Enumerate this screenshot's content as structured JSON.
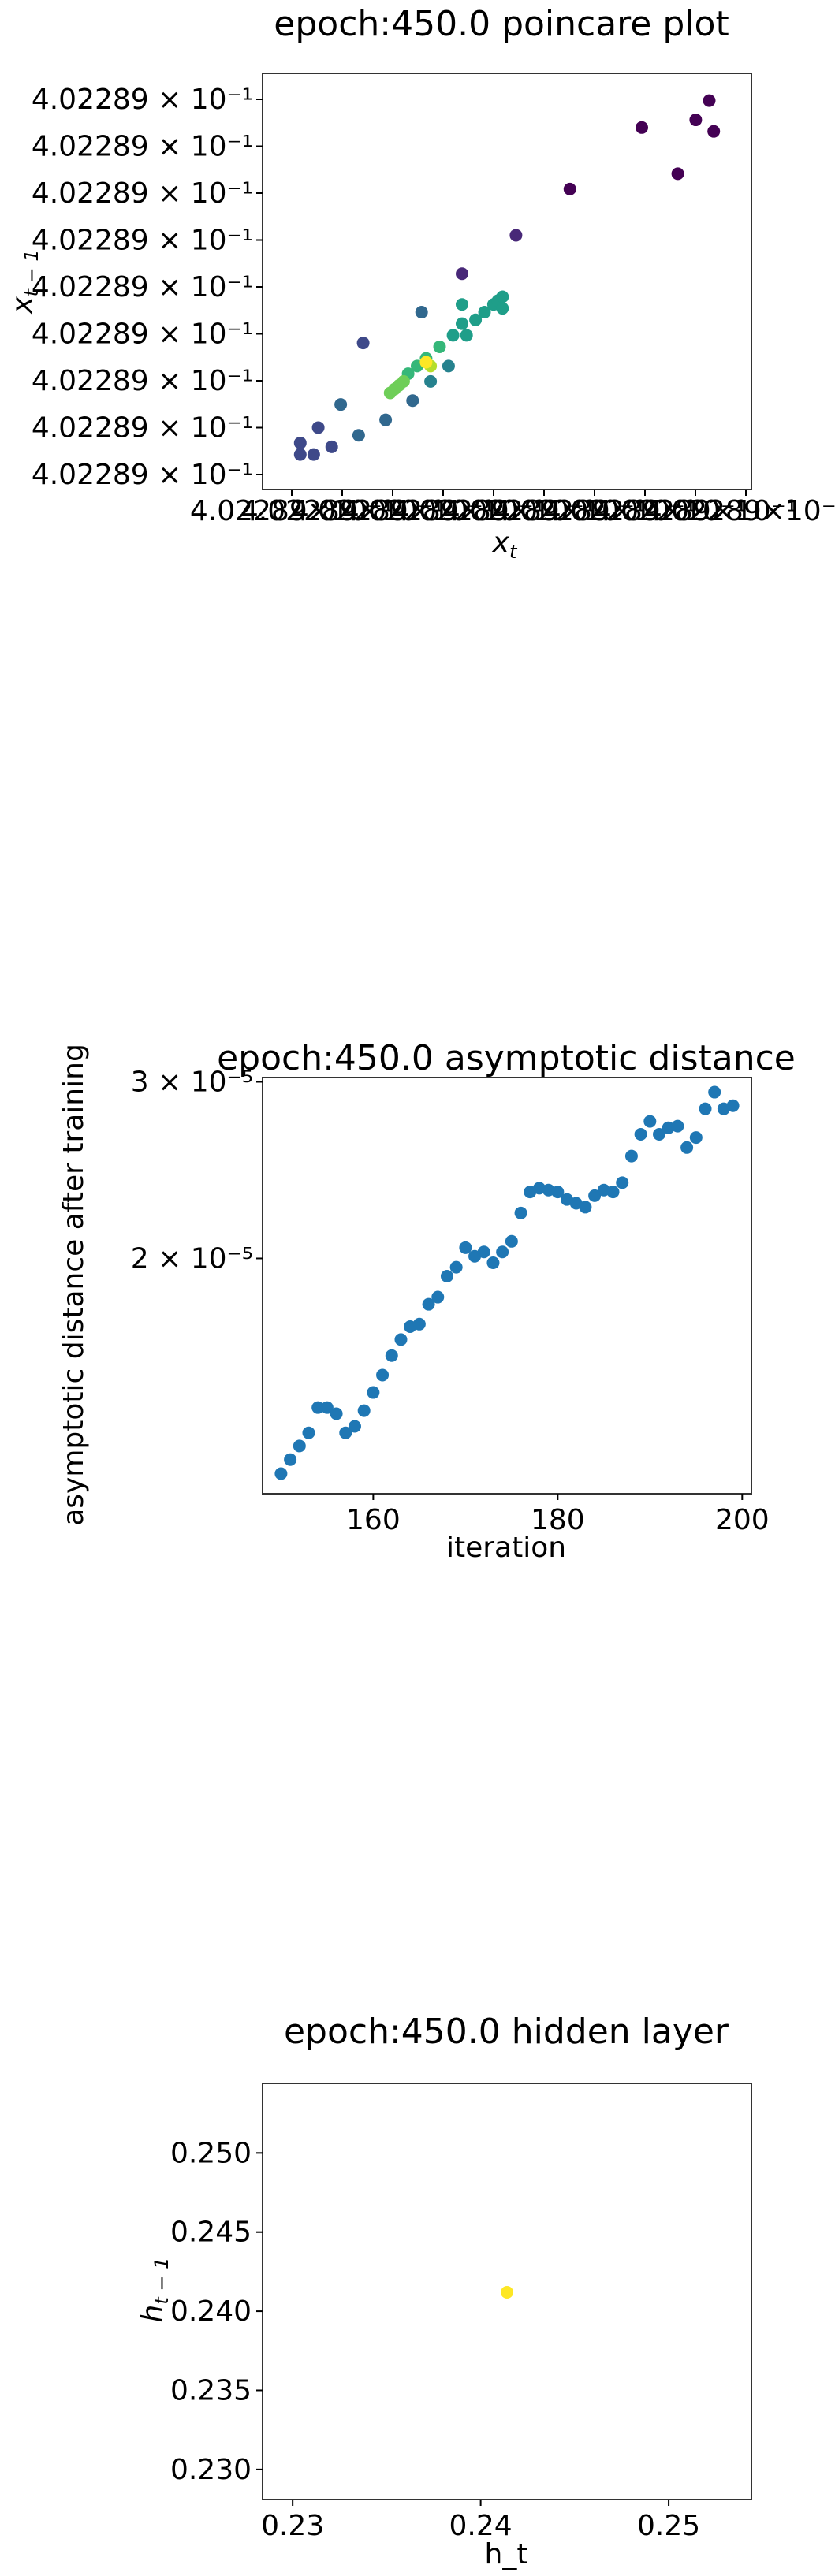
{
  "colors": {
    "series": "#1f77b4",
    "viridis": [
      "#440154",
      "#482878",
      "#3e4989",
      "#31688e",
      "#26828e",
      "#1f9e89",
      "#35b779",
      "#6ece58",
      "#b5de2b",
      "#fde725"
    ]
  },
  "chart_data": [
    {
      "type": "scatter",
      "title": "epoch:450.0 poincare plot",
      "xlabel": "x_t",
      "ylabel": "x_{t-1}",
      "x_offset_label": "4.02289 × 10⁻¹",
      "x_tick_labels": [
        "4.02289×10⁻¹",
        "4.02289×10⁻¹",
        "4.02289×10⁻¹",
        "4.02289×10⁻¹",
        "4.02289×10⁻¹",
        "4.02289×10⁻¹",
        "4.02289×10⁻¹",
        "4.02289×10⁻¹",
        "4.02289×10⁻¹",
        "4.02289×10⁻¹"
      ],
      "y_tick_labels": [
        "4.02289 × 10⁻¹",
        "4.02289 × 10⁻¹",
        "4.02289 × 10⁻¹",
        "4.02289 × 10⁻¹",
        "4.02289 × 10⁻¹",
        "4.02289 × 10⁻¹",
        "4.02289 × 10⁻¹",
        "4.02289 × 10⁻¹",
        "4.02289 × 10⁻¹"
      ],
      "colormap": "viridis",
      "xlim": [
        0,
        1
      ],
      "ylim": [
        0,
        1
      ],
      "points": [
        {
          "x": 0.92,
          "y": 0.92,
          "c": 0.0
        },
        {
          "x": 0.95,
          "y": 0.97,
          "c": 0.0
        },
        {
          "x": 0.88,
          "y": 0.78,
          "c": 0.02
        },
        {
          "x": 0.96,
          "y": 0.89,
          "c": 0.0
        },
        {
          "x": 0.8,
          "y": 0.9,
          "c": 0.03
        },
        {
          "x": 0.64,
          "y": 0.74,
          "c": 0.05
        },
        {
          "x": 0.52,
          "y": 0.62,
          "c": 0.08
        },
        {
          "x": 0.4,
          "y": 0.52,
          "c": 0.12
        },
        {
          "x": 0.04,
          "y": 0.05,
          "c": 0.18
        },
        {
          "x": 0.04,
          "y": 0.08,
          "c": 0.2
        },
        {
          "x": 0.07,
          "y": 0.05,
          "c": 0.22
        },
        {
          "x": 0.08,
          "y": 0.12,
          "c": 0.24
        },
        {
          "x": 0.11,
          "y": 0.07,
          "c": 0.26
        },
        {
          "x": 0.13,
          "y": 0.18,
          "c": 0.28
        },
        {
          "x": 0.18,
          "y": 0.34,
          "c": 0.25
        },
        {
          "x": 0.17,
          "y": 0.1,
          "c": 0.32
        },
        {
          "x": 0.23,
          "y": 0.14,
          "c": 0.35
        },
        {
          "x": 0.29,
          "y": 0.19,
          "c": 0.38
        },
        {
          "x": 0.31,
          "y": 0.42,
          "c": 0.3
        },
        {
          "x": 0.33,
          "y": 0.24,
          "c": 0.42
        },
        {
          "x": 0.37,
          "y": 0.28,
          "c": 0.45
        },
        {
          "x": 0.4,
          "y": 0.44,
          "c": 0.5
        },
        {
          "x": 0.41,
          "y": 0.36,
          "c": 0.55
        },
        {
          "x": 0.43,
          "y": 0.4,
          "c": 0.5
        },
        {
          "x": 0.45,
          "y": 0.42,
          "c": 0.5
        },
        {
          "x": 0.47,
          "y": 0.44,
          "c": 0.5
        },
        {
          "x": 0.48,
          "y": 0.45,
          "c": 0.5
        },
        {
          "x": 0.49,
          "y": 0.46,
          "c": 0.5
        },
        {
          "x": 0.49,
          "y": 0.43,
          "c": 0.52
        },
        {
          "x": 0.4,
          "y": 0.39,
          "c": 0.58
        },
        {
          "x": 0.38,
          "y": 0.36,
          "c": 0.6
        },
        {
          "x": 0.35,
          "y": 0.33,
          "c": 0.62
        },
        {
          "x": 0.32,
          "y": 0.3,
          "c": 0.66
        },
        {
          "x": 0.3,
          "y": 0.28,
          "c": 0.7
        },
        {
          "x": 0.28,
          "y": 0.26,
          "c": 0.72
        },
        {
          "x": 0.27,
          "y": 0.24,
          "c": 0.75
        },
        {
          "x": 0.26,
          "y": 0.23,
          "c": 0.78
        },
        {
          "x": 0.25,
          "y": 0.22,
          "c": 0.8
        },
        {
          "x": 0.24,
          "y": 0.21,
          "c": 0.82
        },
        {
          "x": 0.33,
          "y": 0.28,
          "c": 0.9
        },
        {
          "x": 0.32,
          "y": 0.29,
          "c": 1.0
        }
      ]
    },
    {
      "type": "scatter",
      "title": "epoch:450.0 asymptotic distance",
      "xlabel": "iteration",
      "ylabel": "asymptotic distance after training",
      "yscale": "log",
      "xlim": [
        148,
        201
      ],
      "ylim": [
        1.165e-05,
        3.03e-05
      ],
      "x_ticks": [
        160,
        180,
        200
      ],
      "y_ticks": [
        {
          "value": 2e-05,
          "label": "2 × 10⁻⁵"
        },
        {
          "value": 3e-05,
          "label": "3 × 10⁻⁵"
        }
      ],
      "x": [
        150,
        151,
        152,
        153,
        154,
        155,
        156,
        157,
        158,
        159,
        160,
        161,
        162,
        163,
        164,
        165,
        166,
        167,
        168,
        169,
        170,
        171,
        172,
        173,
        174,
        175,
        176,
        177,
        178,
        179,
        180,
        181,
        182,
        183,
        184,
        185,
        186,
        187,
        188,
        189,
        190,
        191,
        192,
        193,
        194,
        195,
        196,
        197,
        198,
        199
      ],
      "values": [
        1.22e-05,
        1.26e-05,
        1.3e-05,
        1.34e-05,
        1.42e-05,
        1.42e-05,
        1.4e-05,
        1.34e-05,
        1.36e-05,
        1.41e-05,
        1.47e-05,
        1.53e-05,
        1.6e-05,
        1.66e-05,
        1.71e-05,
        1.72e-05,
        1.8e-05,
        1.83e-05,
        1.92e-05,
        1.96e-05,
        2.05e-05,
        2.01e-05,
        2.03e-05,
        1.98e-05,
        2.03e-05,
        2.08e-05,
        2.22e-05,
        2.33e-05,
        2.35e-05,
        2.34e-05,
        2.33e-05,
        2.29e-05,
        2.27e-05,
        2.25e-05,
        2.31e-05,
        2.34e-05,
        2.33e-05,
        2.38e-05,
        2.53e-05,
        2.66e-05,
        2.74e-05,
        2.66e-05,
        2.7e-05,
        2.71e-05,
        2.58e-05,
        2.64e-05,
        2.82e-05,
        2.93e-05,
        2.82e-05,
        2.84e-05
      ]
    },
    {
      "type": "scatter",
      "title": "epoch:450.0 hidden layer",
      "xlabel": "h_t",
      "ylabel": "h_{t-1}",
      "xlim": [
        0.2284,
        0.2544
      ],
      "ylim": [
        0.2281,
        0.2544
      ],
      "x_ticks": [
        {
          "value": 0.23,
          "label": "0.23"
        },
        {
          "value": 0.24,
          "label": "0.24"
        },
        {
          "value": 0.25,
          "label": "0.25"
        }
      ],
      "y_ticks": [
        {
          "value": 0.23,
          "label": "0.230"
        },
        {
          "value": 0.235,
          "label": "0.235"
        },
        {
          "value": 0.24,
          "label": "0.240"
        },
        {
          "value": 0.245,
          "label": "0.245"
        },
        {
          "value": 0.25,
          "label": "0.250"
        }
      ],
      "points": [
        {
          "x": 0.2414,
          "y": 0.2412
        }
      ],
      "point_color": "#fde725"
    }
  ]
}
